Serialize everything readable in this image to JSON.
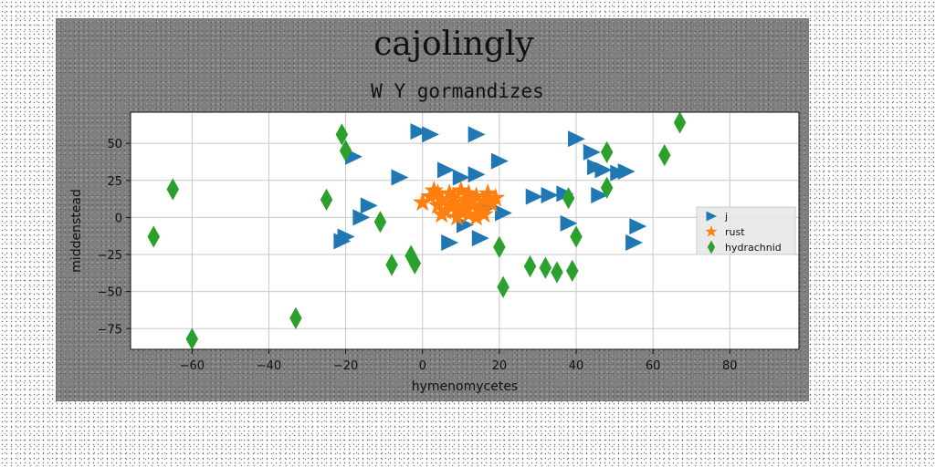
{
  "chart_data": {
    "type": "scatter",
    "title": "cajolingly",
    "subtitle": "W Y gormandizes",
    "xlabel": "hymenomycetes",
    "ylabel": "middenstead",
    "xlim": [
      -76,
      98
    ],
    "ylim": [
      -89,
      71
    ],
    "xticks": [
      -60,
      -40,
      -20,
      0,
      20,
      40,
      60,
      80
    ],
    "yticks": [
      -75,
      -50,
      -25,
      0,
      25,
      50
    ],
    "xtick_labels": [
      "−60",
      "−40",
      "−20",
      "0",
      "20",
      "40",
      "60",
      "80"
    ],
    "ytick_labels": [
      "−75",
      "−50",
      "−25",
      "0",
      "25",
      "50"
    ],
    "grid": true,
    "legend_position": "right",
    "series": [
      {
        "name": "j",
        "marker": "triangle-right",
        "color": "#1f77b4",
        "points": [
          [
            -1,
            58
          ],
          [
            2,
            56
          ],
          [
            14,
            56
          ],
          [
            -6,
            27
          ],
          [
            6,
            32
          ],
          [
            10,
            27
          ],
          [
            14,
            29
          ],
          [
            20,
            38
          ],
          [
            29,
            14
          ],
          [
            33,
            15
          ],
          [
            37,
            16
          ],
          [
            40,
            53
          ],
          [
            44,
            44
          ],
          [
            45,
            34
          ],
          [
            47,
            32
          ],
          [
            51,
            30
          ],
          [
            53,
            31
          ],
          [
            46,
            15
          ],
          [
            38,
            -4
          ],
          [
            56,
            -6
          ],
          [
            55,
            -17
          ],
          [
            -18,
            41
          ],
          [
            -14,
            8
          ],
          [
            -16,
            0
          ],
          [
            -20,
            -13
          ],
          [
            -21,
            -16
          ],
          [
            7,
            -17
          ],
          [
            11,
            -5
          ],
          [
            15,
            -14
          ],
          [
            21,
            3
          ],
          [
            17,
            7
          ]
        ]
      },
      {
        "name": "rust",
        "marker": "star",
        "color": "#ff7f0e",
        "points": [
          [
            0,
            10
          ],
          [
            2,
            14
          ],
          [
            3,
            18
          ],
          [
            4,
            8
          ],
          [
            5,
            12
          ],
          [
            6,
            4
          ],
          [
            7,
            16
          ],
          [
            8,
            10
          ],
          [
            9,
            6
          ],
          [
            10,
            18
          ],
          [
            11,
            12
          ],
          [
            12,
            2
          ],
          [
            13,
            8
          ],
          [
            14,
            14
          ],
          [
            15,
            5
          ],
          [
            16,
            11
          ],
          [
            17,
            16
          ],
          [
            18,
            9
          ],
          [
            19,
            13
          ],
          [
            5,
            2
          ],
          [
            9,
            0
          ],
          [
            12,
            16
          ],
          [
            7,
            8
          ],
          [
            10,
            4
          ],
          [
            14,
            0
          ],
          [
            4,
            16
          ],
          [
            11,
            8
          ],
          [
            8,
            14
          ],
          [
            16,
            2
          ],
          [
            13,
            12
          ]
        ]
      },
      {
        "name": "hydrachnid",
        "marker": "thin-diamond",
        "color": "#2ca02c",
        "points": [
          [
            -70,
            -13
          ],
          [
            -65,
            19
          ],
          [
            -60,
            -82
          ],
          [
            -33,
            -68
          ],
          [
            -25,
            12
          ],
          [
            -21,
            56
          ],
          [
            -20,
            45
          ],
          [
            -11,
            -3
          ],
          [
            -8,
            -32
          ],
          [
            -3,
            -26
          ],
          [
            -2,
            -31
          ],
          [
            20,
            -20
          ],
          [
            21,
            -47
          ],
          [
            28,
            -33
          ],
          [
            32,
            -34
          ],
          [
            35,
            -37
          ],
          [
            38,
            13
          ],
          [
            39,
            -36
          ],
          [
            40,
            -13
          ],
          [
            48,
            44
          ],
          [
            48,
            20
          ],
          [
            63,
            42
          ],
          [
            67,
            64
          ]
        ]
      }
    ]
  }
}
